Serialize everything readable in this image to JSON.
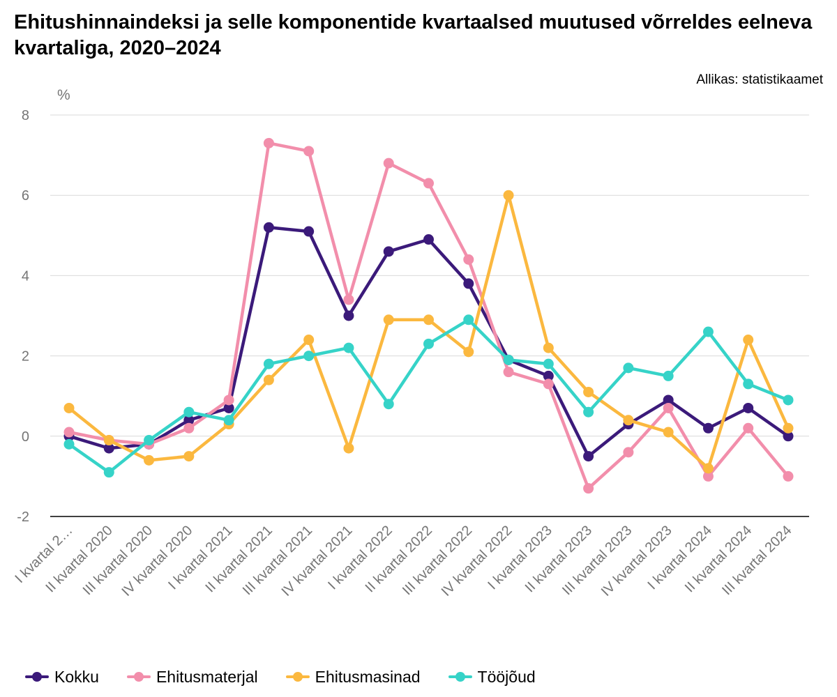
{
  "header": {
    "title": "Ehitushinnaindeksi ja selle komponentide kvartaalsed muutused võrreldes eelneva kvartaliga, 2020–2024",
    "source": "Allikas: statistikaamet"
  },
  "chart_data": {
    "type": "line",
    "ylabel": "%",
    "xlabel": "",
    "ylim": [
      -2,
      8
    ],
    "yticks": [
      -2,
      0,
      2,
      4,
      6,
      8
    ],
    "grid": true,
    "legend_position": "bottom",
    "categories": [
      "I kvartal 2…",
      "II kvartal 2020",
      "III kvartal 2020",
      "IV kvartal 2020",
      "I kvartal 2021",
      "II kvartal 2021",
      "III kvartal 2021",
      "IV kvartal 2021",
      "I kvartal 2022",
      "II kvartal 2022",
      "III kvartal 2022",
      "IV kvartal 2022",
      "I kvartal 2023",
      "II kvartal 2023",
      "III kvartal 2023",
      "IV kvartal 2023",
      "I kvartal 2024",
      "II kvartal 2024",
      "III kvartal 2024"
    ],
    "series": [
      {
        "name": "Kokku",
        "color": "#3b1a7a",
        "values": [
          0.0,
          -0.3,
          -0.2,
          0.4,
          0.7,
          5.2,
          5.1,
          3.0,
          4.6,
          4.9,
          3.8,
          1.9,
          1.5,
          -0.5,
          0.3,
          0.9,
          0.2,
          0.7,
          0.0
        ]
      },
      {
        "name": "Ehitusmaterjal",
        "color": "#f28eab",
        "values": [
          0.1,
          -0.1,
          -0.2,
          0.2,
          0.9,
          7.3,
          7.1,
          3.4,
          6.8,
          6.3,
          4.4,
          1.6,
          1.3,
          -1.3,
          -0.4,
          0.7,
          -1.0,
          0.2,
          -1.0
        ]
      },
      {
        "name": "Ehitusmasinad",
        "color": "#fbb83f",
        "values": [
          0.7,
          -0.1,
          -0.6,
          -0.5,
          0.3,
          1.4,
          2.4,
          -0.3,
          2.9,
          2.9,
          2.1,
          6.0,
          2.2,
          1.1,
          0.4,
          0.1,
          -0.8,
          2.4,
          0.2
        ]
      },
      {
        "name": "Tööjõud",
        "color": "#36d3c8",
        "values": [
          -0.2,
          -0.9,
          -0.1,
          0.6,
          0.4,
          1.8,
          2.0,
          2.2,
          0.8,
          2.3,
          2.9,
          1.9,
          1.8,
          0.6,
          1.7,
          1.5,
          2.6,
          1.3,
          0.9
        ]
      }
    ]
  }
}
